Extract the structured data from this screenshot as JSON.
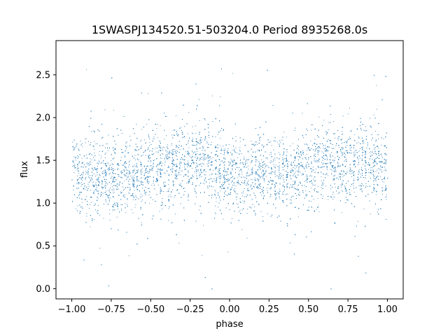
{
  "chart_data": {
    "type": "scatter",
    "title": "1SWASPJ134520.51-503204.0 Period 8935268.0s",
    "xlabel": "phase",
    "ylabel": "flux",
    "xlim": [
      -1.1,
      1.1
    ],
    "ylim": [
      -0.12,
      2.9
    ],
    "x_ticks": [
      -1.0,
      -0.75,
      -0.5,
      -0.25,
      0.0,
      0.25,
      0.5,
      0.75,
      1.0
    ],
    "x_tick_labels": [
      "−1.00",
      "−0.75",
      "−0.50",
      "−0.25",
      "0.00",
      "0.25",
      "0.50",
      "0.75",
      "1.00"
    ],
    "y_ticks": [
      0.0,
      0.5,
      1.0,
      1.5,
      2.0,
      2.5
    ],
    "y_tick_labels": [
      "0.0",
      "0.5",
      "1.0",
      "1.5",
      "2.0",
      "2.5"
    ],
    "grid": false,
    "legend": "none",
    "marker_color": "#1f77b4",
    "series": [
      {
        "x_range": [
          -1.0,
          1.0
        ],
        "y_center_profile": [
          [
            -1.0,
            1.4
          ],
          [
            -0.9,
            1.28
          ],
          [
            -0.8,
            1.35
          ],
          [
            -0.7,
            1.3
          ],
          [
            -0.6,
            1.32
          ],
          [
            -0.5,
            1.38
          ],
          [
            -0.4,
            1.42
          ],
          [
            -0.3,
            1.48
          ],
          [
            -0.2,
            1.5
          ],
          [
            -0.1,
            1.45
          ],
          [
            0.0,
            1.35
          ],
          [
            0.1,
            1.3
          ],
          [
            0.2,
            1.32
          ],
          [
            0.3,
            1.35
          ],
          [
            0.4,
            1.35
          ],
          [
            0.5,
            1.4
          ],
          [
            0.6,
            1.45
          ],
          [
            0.7,
            1.42
          ],
          [
            0.8,
            1.48
          ],
          [
            0.9,
            1.5
          ],
          [
            1.0,
            1.4
          ]
        ],
        "y_spread": 0.22,
        "y_min_observed": 0.0,
        "y_max_observed": 2.8,
        "point_count_approx": 40000
      }
    ]
  }
}
